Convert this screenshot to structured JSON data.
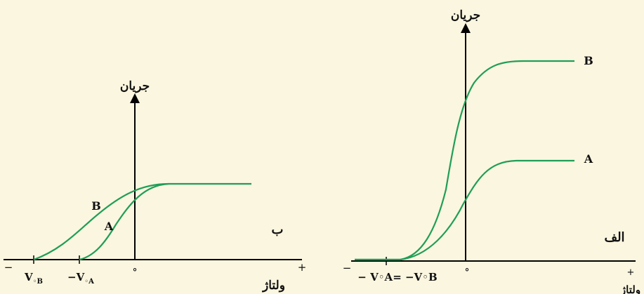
{
  "left_panel": {
    "panel_label": "ب",
    "y_axis_label": "جریان",
    "x_axis_label": "ولتاژ",
    "origin_label": "°",
    "minus_sign": "−",
    "plus_sign": "+",
    "curve_labels": {
      "a": "A",
      "b": "B"
    },
    "tick_labels": {
      "vb": "V",
      "vb_sub": "◦B",
      "va": "−V",
      "va_sub": "◦A"
    }
  },
  "right_panel": {
    "panel_label": "الف",
    "y_axis_label": "جریان",
    "x_axis_label": "ولتاژ",
    "origin_label": "°",
    "minus_sign": "−",
    "plus_sign": "+",
    "curve_labels": {
      "a": "A",
      "b": "B"
    },
    "tick_label": "− V◦A= −V◦B"
  },
  "colors": {
    "background": "#fbf6df",
    "curve": "#1f9e57",
    "axis": "#000000"
  }
}
